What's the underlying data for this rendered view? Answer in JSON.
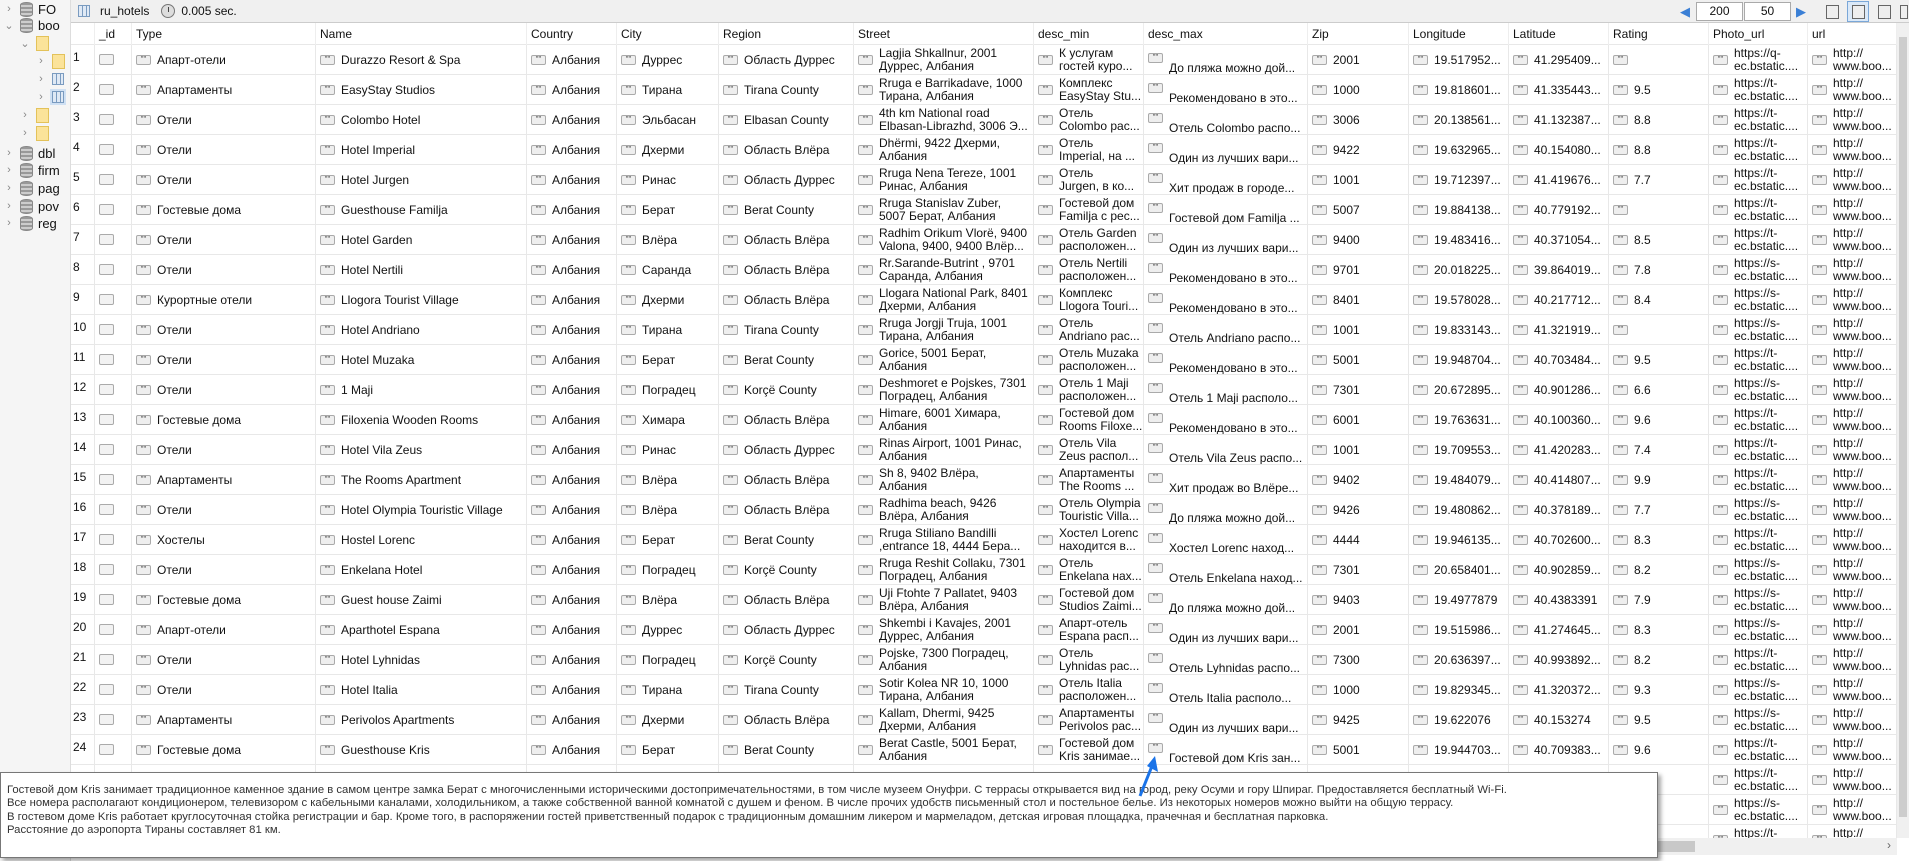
{
  "tree": {
    "items": [
      {
        "label": "FO",
        "icon": "database-icon",
        "expanded": false
      },
      {
        "label": "boo",
        "icon": "database-icon",
        "expanded": true
      },
      {
        "label": "",
        "icon": "folder-icon",
        "expanded": true
      },
      {
        "label": "",
        "icon": "folder-icon",
        "expanded": false
      },
      {
        "label": "",
        "icon": "table-icon",
        "expanded": false
      },
      {
        "label": "",
        "icon": "table-icon",
        "expanded": false,
        "selected": true
      },
      {
        "label": "",
        "icon": "folder-icon",
        "expanded": false
      },
      {
        "label": "",
        "icon": "folder-icon",
        "expanded": false
      },
      {
        "label": "dbl",
        "icon": "database-icon",
        "expanded": false
      },
      {
        "label": "firm",
        "icon": "database-icon",
        "expanded": false
      },
      {
        "label": "pag",
        "icon": "database-icon",
        "expanded": false
      },
      {
        "label": "pov",
        "icon": "database-icon",
        "expanded": false
      },
      {
        "label": "reg",
        "icon": "database-icon",
        "expanded": false
      }
    ]
  },
  "toolbar": {
    "collection": "ru_hotels",
    "time": "0.005 sec.",
    "skip": "200",
    "limit": "50",
    "active_view": "table"
  },
  "table": {
    "columns": [
      "",
      "_id",
      "Type",
      "Name",
      "Country",
      "City",
      "Region",
      "Street",
      "desc_min",
      "desc_max",
      "Zip",
      "Longitude",
      "Latitude",
      "Rating",
      "Photo_url",
      "url"
    ],
    "rows": [
      [
        "1",
        "Апарт-отели",
        "Durazzo Resort & Spa",
        "Албания",
        "Дуррес",
        "Область Дуррес",
        "Lagjia Shkallnur, 2001\nДуррес, Албания",
        "К услугам\nгостей куро...",
        "До пляжа можно дой...",
        "2001",
        "19.517952...",
        "41.295409...",
        "",
        "https://q-\nec.bstatic....",
        "http://\nwww.boo..."
      ],
      [
        "2",
        "Апартаменты",
        "EasyStay Studios",
        "Албания",
        "Тирана",
        "Tirana County",
        "Rruga e Barrikadave, 1000\nТирана, Албания",
        "Комплекс\nEasyStay Stu...",
        "Рекомендовано в это...",
        "1000",
        "19.818601...",
        "41.335443...",
        "9.5",
        "https://t-\nec.bstatic....",
        "http://\nwww.boo..."
      ],
      [
        "3",
        "Отели",
        "Colombo Hotel",
        "Албания",
        "Эльбасан",
        "Elbasan County",
        "4th km National road\nElbasan-Librazhd, 3006 Э...",
        "Отель\nColombo рас...",
        "Отель Colombo распо...",
        "3006",
        "20.138561...",
        "41.132387...",
        "8.8",
        "https://t-\nec.bstatic....",
        "http://\nwww.boo..."
      ],
      [
        "4",
        "Отели",
        "Hotel Imperial",
        "Албания",
        "Дхерми",
        "Область Влёра",
        "Dhërmi, 9422 Дхерми,\nАлбания",
        "Отель\nImperial, на ...",
        "Один из лучших вари...",
        "9422",
        "19.632965...",
        "40.154080...",
        "8.8",
        "https://t-\nec.bstatic....",
        "http://\nwww.boo..."
      ],
      [
        "5",
        "Отели",
        "Hotel Jurgen",
        "Албания",
        "Ринас",
        "Область Дуррес",
        "Rruga Nena Tereze, 1001\nРинас, Албания",
        "Отель\nJurgen, в ко...",
        "Хит продаж в городе...",
        "1001",
        "19.712397...",
        "41.419676...",
        "7.7",
        "https://t-\nec.bstatic....",
        "http://\nwww.boo..."
      ],
      [
        "6",
        "Гостевые дома",
        "Guesthouse Familja",
        "Албания",
        "Берат",
        "Berat County",
        "Rruga Stanislav Zuber,\n5007 Берат, Албания",
        "Гостевой дом\nFamilja с рес...",
        "Гостевой дом Familja ...",
        "5007",
        "19.884138...",
        "40.779192...",
        "",
        "https://t-\nec.bstatic....",
        "http://\nwww.boo..."
      ],
      [
        "7",
        "Отели",
        "Hotel Garden",
        "Албания",
        "Влёра",
        "Область Влёра",
        "Radhim Orikum Vlorë, 9400\nValona, 9400, 9400 Влёр...",
        "Отель Garden\nрасположен...",
        "Один из лучших вари...",
        "9400",
        "19.483416...",
        "40.371054...",
        "8.5",
        "https://t-\nec.bstatic....",
        "http://\nwww.boo..."
      ],
      [
        "8",
        "Отели",
        "Hotel Nertili",
        "Албания",
        "Саранда",
        "Область Влёра",
        "Rr.Sarande-Butrint , 9701\nСаранда, Албания",
        "Отель Nertili\nрасположен...",
        "Рекомендовано в это...",
        "9701",
        "20.018225...",
        "39.864019...",
        "7.8",
        "https://s-\nec.bstatic....",
        "http://\nwww.boo..."
      ],
      [
        "9",
        "Курортные отели",
        "Llogora Tourist Village",
        "Албания",
        "Дхерми",
        "Область Влёра",
        "Llogara National Park, 8401\nДхерми, Албания",
        "Комплекс\nLlogora Touri...",
        "Рекомендовано в это...",
        "8401",
        "19.578028...",
        "40.217712...",
        "8.4",
        "https://s-\nec.bstatic....",
        "http://\nwww.boo..."
      ],
      [
        "10",
        "Отели",
        "Hotel Andriano",
        "Албания",
        "Тирана",
        "Tirana County",
        "Rruga Jorgji Truja, 1001\nТирана, Албания",
        "Отель\nAndriano рас...",
        "Отель Andriano распо...",
        "1001",
        "19.833143...",
        "41.321919...",
        "",
        "https://s-\nec.bstatic....",
        "http://\nwww.boo..."
      ],
      [
        "11",
        "Отели",
        "Hotel Muzaka",
        "Албания",
        "Берат",
        "Berat County",
        "Gorice, 5001 Берат,\nАлбания",
        "Отель Muzaka\nрасположен...",
        "Рекомендовано в это...",
        "5001",
        "19.948704...",
        "40.703484...",
        "9.5",
        "https://t-\nec.bstatic....",
        "http://\nwww.boo..."
      ],
      [
        "12",
        "Отели",
        "1 Maji",
        "Албания",
        "Поградец",
        "Korçë County",
        "Deshmoret e Pojskes, 7301\nПоградец, Албания",
        "Отель 1 Maji\nрасположен...",
        "Отель 1 Maji располо...",
        "7301",
        "20.672895...",
        "40.901286...",
        "6.6",
        "https://s-\nec.bstatic....",
        "http://\nwww.boo..."
      ],
      [
        "13",
        "Гостевые дома",
        "Filoxenia Wooden Rooms",
        "Албания",
        "Химара",
        "Область Влёра",
        "Himare, 6001 Химара,\nАлбания",
        "Гостевой дом\nRooms Filoxe...",
        "Рекомендовано в это...",
        "6001",
        "19.763631...",
        "40.100360...",
        "9.6",
        "https://t-\nec.bstatic....",
        "http://\nwww.boo..."
      ],
      [
        "14",
        "Отели",
        "Hotel Vila Zeus",
        "Албания",
        "Ринас",
        "Область Дуррес",
        "Rinas Airport, 1001 Ринас,\nАлбания",
        "Отель Vila\nZeus распол...",
        "Отель Vila Zeus распо...",
        "1001",
        "19.709553...",
        "41.420283...",
        "7.4",
        "https://t-\nec.bstatic....",
        "http://\nwww.boo..."
      ],
      [
        "15",
        "Апартаменты",
        "The Rooms Apartment",
        "Албания",
        "Влёра",
        "Область Влёра",
        "Sh 8, 9402 Влёра,\nАлбания",
        "Апартаменты\nThe Rooms ...",
        "Хит продаж во Влёре...",
        "9402",
        "19.484079...",
        "40.414807...",
        "9.9",
        "https://t-\nec.bstatic....",
        "http://\nwww.boo..."
      ],
      [
        "16",
        "Отели",
        "Hotel Olympia Touristic Village",
        "Албания",
        "Влёра",
        "Область Влёра",
        "Radhima beach, 9426\nВлёра, Албания",
        "Отель Olympia\nTouristic Villa...",
        "До пляжа можно дой...",
        "9426",
        "19.480862...",
        "40.378189...",
        "7.7",
        "https://s-\nec.bstatic....",
        "http://\nwww.boo..."
      ],
      [
        "17",
        "Хостелы",
        "Hostel Lorenc",
        "Албания",
        "Берат",
        "Berat County",
        "Rruga Stiliano Bandilli\n,entrance 18, 4444 Бера...",
        "Хостел Lorenc\nнаходится в...",
        "Хостел Lorenc наход...",
        "4444",
        "19.946135...",
        "40.702600...",
        "8.3",
        "https://t-\nec.bstatic....",
        "http://\nwww.boo..."
      ],
      [
        "18",
        "Отели",
        "Enkelana Hotel",
        "Албания",
        "Поградец",
        "Korçë County",
        "Rruga Reshit Collaku, 7301\nПоградец, Албания",
        "Отель\nEnkelana нах...",
        "Отель Enkelana наход...",
        "7301",
        "20.658401...",
        "40.902859...",
        "8.2",
        "https://s-\nec.bstatic....",
        "http://\nwww.boo..."
      ],
      [
        "19",
        "Гостевые дома",
        "Guest house Zaimi",
        "Албания",
        "Влёра",
        "Область Влёра",
        "Uji Ftohte 7 Pallatet, 9403\nВлёра, Албания",
        "Гостевой дом\nStudios Zaimi...",
        "До пляжа можно дой...",
        "9403",
        "19.4977879",
        "40.4383391",
        "7.9",
        "https://s-\nec.bstatic....",
        "http://\nwww.boo..."
      ],
      [
        "20",
        "Апарт-отели",
        "Aparthotel Espana",
        "Албания",
        "Дуррес",
        "Область Дуррес",
        "Shkembi i Kavajes, 2001\nДуррес, Албания",
        "Апарт-отель\nEspana расп...",
        "Один из лучших вари...",
        "2001",
        "19.515986...",
        "41.274645...",
        "8.3",
        "https://s-\nec.bstatic....",
        "http://\nwww.boo..."
      ],
      [
        "21",
        "Отели",
        "Hotel Lyhnidas",
        "Албания",
        "Поградец",
        "Korçë County",
        "Pojske, 7300 Поградец,\nАлбания",
        "Отель\nLyhnidas рас...",
        "Отель Lyhnidas распо...",
        "7300",
        "20.636397...",
        "40.993892...",
        "8.2",
        "https://t-\nec.bstatic....",
        "http://\nwww.boo..."
      ],
      [
        "22",
        "Отели",
        "Hotel Italia",
        "Албания",
        "Тирана",
        "Tirana County",
        "Sotir Kolea NR 10, 1000\nТирана, Албания",
        "Отель Italia\nрасположен...",
        "Отель Italia располо...",
        "1000",
        "19.829345...",
        "41.320372...",
        "9.3",
        "https://s-\nec.bstatic....",
        "http://\nwww.boo..."
      ],
      [
        "23",
        "Апартаменты",
        "Perivolos Apartments",
        "Албания",
        "Дхерми",
        "Область Влёра",
        "Kallam, Dhermi, 9425\nДхерми, Албания",
        "Апартаменты\nPerivolos рас...",
        "Один из лучших вари...",
        "9425",
        "19.622076",
        "40.153274",
        "9.5",
        "https://s-\nec.bstatic....",
        "http://\nwww.boo..."
      ],
      [
        "24",
        "Гостевые дома",
        "Guesthouse Kris",
        "Албания",
        "Берат",
        "Berat County",
        "Berat Castle, 5001 Берат,\nАлбания",
        "Гостевой дом\nKris занимае...",
        "Гостевой дом Kris зан...",
        "5001",
        "19.944703...",
        "40.709383...",
        "9.6",
        "https://t-\nec.bstatic....",
        "http://\nwww.boo..."
      ],
      [
        "",
        "",
        "",
        "",
        "",
        "",
        "",
        "",
        "",
        "",
        "",
        "",
        "",
        "https://t-\nec.bstatic....",
        "http://\nwww.boo..."
      ],
      [
        "",
        "",
        "",
        "",
        "",
        "",
        "",
        "",
        "",
        "",
        "",
        "",
        "",
        "https://s-\nec.bstatic....",
        "http://\nwww.boo..."
      ],
      [
        "",
        "",
        "",
        "",
        "",
        "",
        "",
        "",
        "",
        "",
        "",
        "",
        "",
        "https://t-\nec.bstatic....",
        "http://\nwww.boo..."
      ]
    ]
  },
  "tooltip": {
    "lines": [
      "Гостевой дом Kris занимает традиционное каменное здание в самом центре замка Берат с многочисленными историческими достопримечательностями, в том числе музеем Онуфри. С террасы открывается вид на город, реку Осуми и гору Шпираг. Предоставляется бесплатный Wi-Fi.",
      "Все номера располагают кондиционером, телевизором с кабельными каналами, холодильником, а также собственной ванной комнатой с душем и феном. В числе прочих удобств письменный стол и постельное белье. Из некоторых номеров можно выйти на общую террасу.",
      "В гостевом доме Kris работает круглосуточная стойка регистрации и бар. Кроме того, в распоряжении гостей приветственный подарок с традиционным домашним ликером и мармеладом, детская игровая площадка, прачечная и бесплатная парковка.",
      "Расстояние до аэропорта Тираны составляет 81 км."
    ]
  },
  "colors": {
    "cursor": "#1a73e8",
    "grid_line": "#e8e8e8",
    "view_active": "#dbe9f8"
  }
}
